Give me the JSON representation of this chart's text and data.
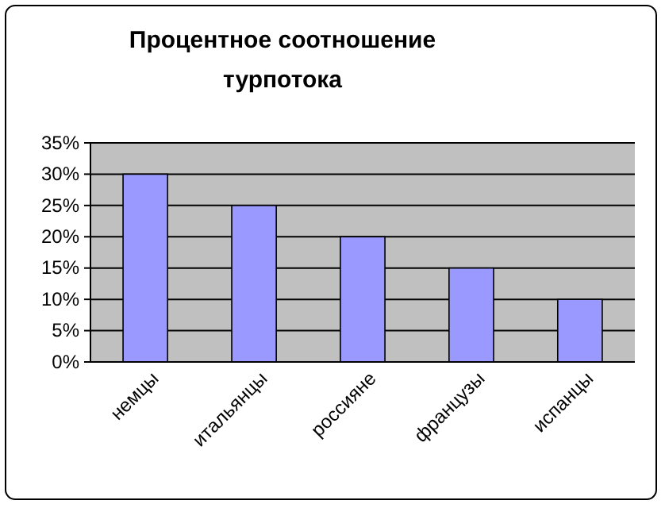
{
  "chart_data": {
    "type": "bar",
    "title": "Процентное соотношение турпотока",
    "categories": [
      "немцы",
      "итальянцы",
      "россияне",
      "французы",
      "испанцы"
    ],
    "values": [
      30,
      25,
      20,
      15,
      10
    ],
    "color": "#9999ff",
    "ylim": [
      0,
      35
    ],
    "yticks": [
      {
        "value": 0,
        "label": "0%"
      },
      {
        "value": 5,
        "label": "5%"
      },
      {
        "value": 10,
        "label": "10%"
      },
      {
        "value": 15,
        "label": "15%"
      },
      {
        "value": 20,
        "label": "20%"
      },
      {
        "value": 25,
        "label": "25%"
      },
      {
        "value": 30,
        "label": "30%"
      },
      {
        "value": 35,
        "label": "35%"
      }
    ],
    "grid": "y"
  }
}
